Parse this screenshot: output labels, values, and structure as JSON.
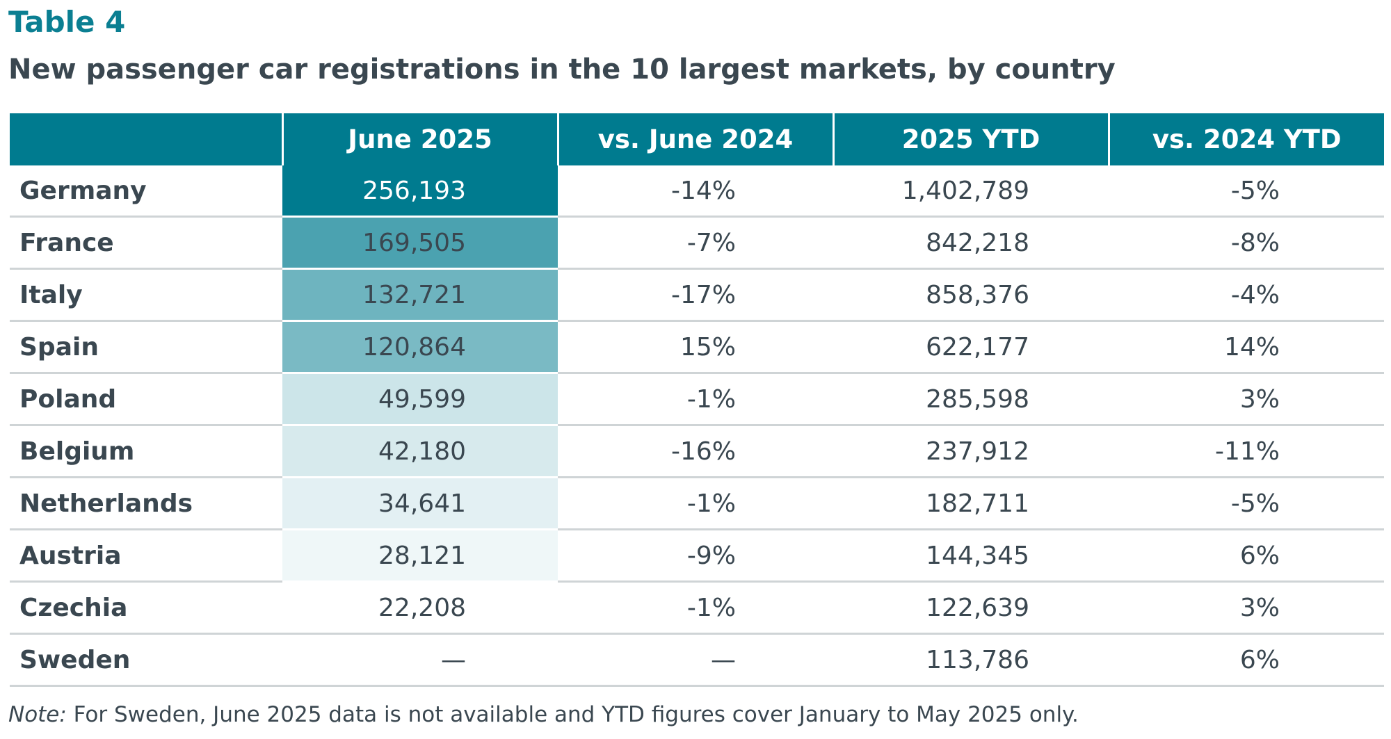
{
  "header": {
    "table_number": "Table 4",
    "title": "New passenger car registrations in the 10 largest markets, by country"
  },
  "chart_data": {
    "type": "table",
    "columns": [
      "",
      "June 2025",
      "vs. June 2024",
      "2025 YTD",
      "vs. 2024 YTD"
    ],
    "rows": [
      {
        "country": "Germany",
        "june_2025": "256,193",
        "vs_june_2024": "-14%",
        "ytd_2025": "1,402,789",
        "vs_ytd_2024": "-5%",
        "june_value": 256193
      },
      {
        "country": "France",
        "june_2025": "169,505",
        "vs_june_2024": "-7%",
        "ytd_2025": "842,218",
        "vs_ytd_2024": "-8%",
        "june_value": 169505
      },
      {
        "country": "Italy",
        "june_2025": "132,721",
        "vs_june_2024": "-17%",
        "ytd_2025": "858,376",
        "vs_ytd_2024": "-4%",
        "june_value": 132721
      },
      {
        "country": "Spain",
        "june_2025": "120,864",
        "vs_june_2024": "15%",
        "ytd_2025": "622,177",
        "vs_ytd_2024": "14%",
        "june_value": 120864
      },
      {
        "country": "Poland",
        "june_2025": "49,599",
        "vs_june_2024": "-1%",
        "ytd_2025": "285,598",
        "vs_ytd_2024": "3%",
        "june_value": 49599
      },
      {
        "country": "Belgium",
        "june_2025": "42,180",
        "vs_june_2024": "-16%",
        "ytd_2025": "237,912",
        "vs_ytd_2024": "-11%",
        "june_value": 42180
      },
      {
        "country": "Netherlands",
        "june_2025": "34,641",
        "vs_june_2024": "-1%",
        "ytd_2025": "182,711",
        "vs_ytd_2024": "-5%",
        "june_value": 34641
      },
      {
        "country": "Austria",
        "june_2025": "28,121",
        "vs_june_2024": "-9%",
        "ytd_2025": "144,345",
        "vs_ytd_2024": "6%",
        "june_value": 28121
      },
      {
        "country": "Czechia",
        "june_2025": "22,208",
        "vs_june_2024": "-1%",
        "ytd_2025": "122,639",
        "vs_ytd_2024": "3%",
        "june_value": 22208
      },
      {
        "country": "Sweden",
        "june_2025": "—",
        "vs_june_2024": "—",
        "ytd_2025": "113,786",
        "vs_ytd_2024": "6%",
        "june_value": null
      }
    ],
    "heatmap_column": "June 2025",
    "heatmap_colors": {
      "high": "#007b8f",
      "low": "#ffffff"
    }
  },
  "colors": {
    "accent": "#0b7f92",
    "header_bg": "#007b8f",
    "text": "#3a4750",
    "rule": "#cfd4d6"
  },
  "note": {
    "label": "Note:",
    "text": " For Sweden, June 2025 data is not available and YTD figures cover January to May 2025 only."
  }
}
